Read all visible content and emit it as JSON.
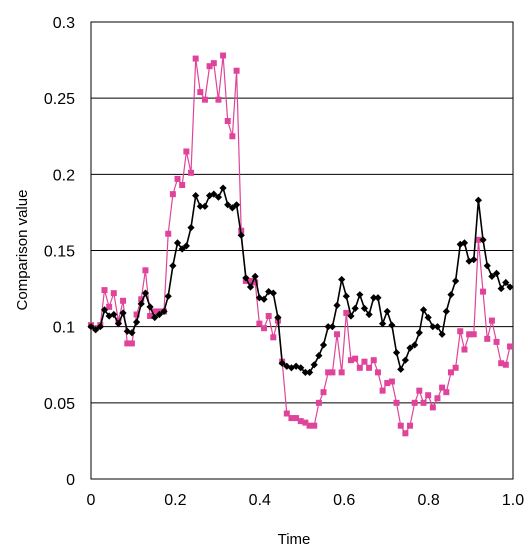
{
  "chart_data": {
    "type": "line",
    "title": "",
    "xlabel": "Time",
    "ylabel": "Comparison value",
    "xlim": [
      0,
      1.0
    ],
    "ylim": [
      0,
      0.3
    ],
    "xticks": [
      0,
      0.2,
      0.4,
      0.6,
      0.8,
      1.0
    ],
    "xtick_labels": [
      "0",
      "0.2",
      "0.4",
      "0.6",
      "0.8",
      "1.0"
    ],
    "yticks": [
      0,
      0.05,
      0.1,
      0.15,
      0.2,
      0.25,
      0.3
    ],
    "ytick_labels": [
      "0",
      "0.05",
      "0.1",
      "0.15",
      "0.2",
      "0.25",
      "0.3"
    ],
    "grid": "horizontal",
    "legend": "none",
    "series": [
      {
        "color": "#e0449a",
        "marker": "square",
        "x": [
          0.0,
          0.011,
          0.022,
          0.032,
          0.043,
          0.054,
          0.065,
          0.076,
          0.086,
          0.097,
          0.108,
          0.119,
          0.129,
          0.14,
          0.151,
          0.162,
          0.173,
          0.183,
          0.194,
          0.205,
          0.216,
          0.226,
          0.237,
          0.248,
          0.259,
          0.27,
          0.281,
          0.291,
          0.302,
          0.313,
          0.324,
          0.335,
          0.345,
          0.356,
          0.367,
          0.378,
          0.389,
          0.399,
          0.41,
          0.421,
          0.432,
          0.443,
          0.453,
          0.464,
          0.475,
          0.486,
          0.497,
          0.508,
          0.518,
          0.529,
          0.54,
          0.551,
          0.562,
          0.572,
          0.583,
          0.594,
          0.605,
          0.616,
          0.626,
          0.637,
          0.648,
          0.659,
          0.67,
          0.68,
          0.691,
          0.702,
          0.713,
          0.724,
          0.734,
          0.745,
          0.756,
          0.767,
          0.778,
          0.788,
          0.799,
          0.81,
          0.821,
          0.832,
          0.842,
          0.853,
          0.864,
          0.875,
          0.885,
          0.896,
          0.907,
          0.918,
          0.929,
          0.939,
          0.95,
          0.961,
          0.972,
          0.983,
          0.993
        ],
        "y": [
          0.101,
          0.099,
          0.101,
          0.124,
          0.113,
          0.122,
          0.104,
          0.117,
          0.089,
          0.089,
          0.108,
          0.118,
          0.137,
          0.107,
          0.11,
          0.11,
          0.11,
          0.161,
          0.187,
          0.197,
          0.193,
          0.215,
          0.201,
          0.276,
          0.254,
          0.249,
          0.271,
          0.273,
          0.249,
          0.278,
          0.235,
          0.225,
          0.268,
          0.163,
          0.13,
          0.13,
          0.129,
          0.102,
          0.099,
          0.107,
          0.093,
          0.104,
          0.077,
          0.043,
          0.04,
          0.04,
          0.038,
          0.037,
          0.035,
          0.035,
          0.05,
          0.057,
          0.07,
          0.07,
          0.095,
          0.07,
          0.109,
          0.078,
          0.079,
          0.073,
          0.077,
          0.073,
          0.078,
          0.07,
          0.058,
          0.063,
          0.064,
          0.05,
          0.035,
          0.03,
          0.035,
          0.05,
          0.058,
          0.05,
          0.055,
          0.047,
          0.053,
          0.06,
          0.057,
          0.07,
          0.073,
          0.097,
          0.085,
          0.095,
          0.095,
          0.157,
          0.123,
          0.092,
          0.104,
          0.09,
          0.076,
          0.075,
          0.087
        ]
      },
      {
        "color": "#000000",
        "marker": "diamond",
        "x": [
          0.0,
          0.011,
          0.022,
          0.032,
          0.043,
          0.054,
          0.065,
          0.076,
          0.086,
          0.097,
          0.108,
          0.119,
          0.129,
          0.14,
          0.151,
          0.162,
          0.173,
          0.183,
          0.194,
          0.205,
          0.216,
          0.226,
          0.237,
          0.248,
          0.259,
          0.27,
          0.281,
          0.291,
          0.302,
          0.313,
          0.324,
          0.335,
          0.345,
          0.356,
          0.367,
          0.378,
          0.389,
          0.399,
          0.41,
          0.421,
          0.432,
          0.443,
          0.453,
          0.464,
          0.475,
          0.486,
          0.497,
          0.508,
          0.518,
          0.529,
          0.54,
          0.551,
          0.562,
          0.572,
          0.583,
          0.594,
          0.605,
          0.616,
          0.626,
          0.637,
          0.648,
          0.659,
          0.67,
          0.68,
          0.691,
          0.702,
          0.713,
          0.724,
          0.734,
          0.745,
          0.756,
          0.767,
          0.778,
          0.788,
          0.799,
          0.81,
          0.821,
          0.832,
          0.842,
          0.853,
          0.864,
          0.875,
          0.885,
          0.896,
          0.907,
          0.918,
          0.929,
          0.939,
          0.95,
          0.961,
          0.972,
          0.983,
          0.993
        ],
        "y": [
          0.1,
          0.098,
          0.1,
          0.111,
          0.107,
          0.108,
          0.102,
          0.109,
          0.097,
          0.096,
          0.103,
          0.115,
          0.122,
          0.113,
          0.106,
          0.108,
          0.11,
          0.12,
          0.14,
          0.155,
          0.151,
          0.153,
          0.165,
          0.186,
          0.179,
          0.179,
          0.186,
          0.187,
          0.185,
          0.191,
          0.18,
          0.178,
          0.18,
          0.16,
          0.132,
          0.126,
          0.133,
          0.119,
          0.118,
          0.123,
          0.122,
          0.106,
          0.076,
          0.074,
          0.073,
          0.074,
          0.073,
          0.07,
          0.07,
          0.075,
          0.081,
          0.088,
          0.1,
          0.1,
          0.114,
          0.131,
          0.12,
          0.107,
          0.112,
          0.121,
          0.112,
          0.108,
          0.119,
          0.119,
          0.102,
          0.11,
          0.101,
          0.083,
          0.072,
          0.078,
          0.086,
          0.088,
          0.096,
          0.111,
          0.106,
          0.1,
          0.1,
          0.095,
          0.11,
          0.121,
          0.13,
          0.154,
          0.155,
          0.143,
          0.144,
          0.183,
          0.157,
          0.14,
          0.133,
          0.135,
          0.125,
          0.129,
          0.126
        ]
      }
    ]
  }
}
